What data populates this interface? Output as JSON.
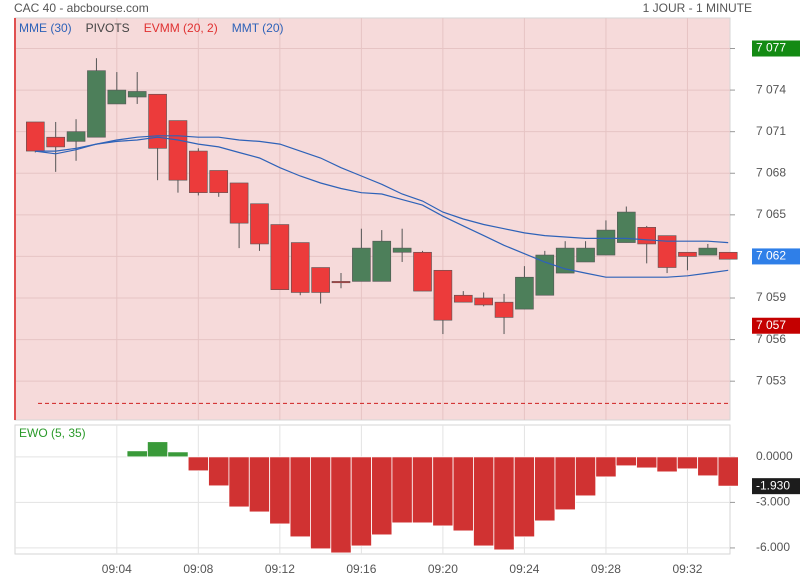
{
  "header": {
    "title": "CAC 40 - abcbourse.com",
    "timeframe": "1 JOUR - 1 MINUTE"
  },
  "chart_data": [
    {
      "type": "candlestick",
      "categories": [
        null,
        null,
        null,
        null,
        "09:04",
        null,
        null,
        null,
        "09:08",
        null,
        null,
        null,
        "09:12",
        null,
        null,
        null,
        "09:16",
        null,
        null,
        null,
        "09:20",
        null,
        null,
        null,
        "09:24",
        null,
        null,
        null,
        "09:28",
        null,
        null,
        null,
        "09:32",
        null,
        null
      ],
      "open": [
        7071.7,
        7070.6,
        7070.3,
        7070.6,
        7073.0,
        7073.5,
        7073.7,
        7071.8,
        7069.6,
        7068.2,
        7067.3,
        7065.8,
        7064.3,
        7063.0,
        7061.2,
        7060.2,
        7060.2,
        7060.2,
        7062.3,
        7062.3,
        7061.0,
        7059.2,
        7059.0,
        7058.7,
        7058.2,
        7059.2,
        7060.8,
        7061.6,
        7062.1,
        7063.0,
        7064.1,
        7063.5,
        7062.3,
        7062.1,
        7062.3
      ],
      "high": [
        7071.7,
        7071.7,
        7071.9,
        7076.3,
        7075.3,
        7075.3,
        7073.7,
        7071.8,
        7069.8,
        7068.2,
        7067.3,
        7065.8,
        7064.3,
        7063.0,
        7061.2,
        7060.8,
        7064.0,
        7063.9,
        7064.0,
        7062.4,
        7061.0,
        7059.5,
        7059.4,
        7059.3,
        7061.3,
        7062.4,
        7063.1,
        7063.1,
        7064.6,
        7065.6,
        7064.2,
        7063.5,
        7062.3,
        7062.9,
        7062.3
      ],
      "low": [
        7069.5,
        7068.1,
        7068.9,
        7070.6,
        7073.0,
        7073.0,
        7067.5,
        7066.6,
        7066.4,
        7066.3,
        7062.6,
        7062.4,
        7059.6,
        7059.2,
        7058.6,
        7059.7,
        7060.2,
        7060.2,
        7061.6,
        7059.5,
        7056.4,
        7058.7,
        7058.4,
        7056.4,
        7058.2,
        7059.2,
        7060.8,
        7061.6,
        7062.1,
        7063.0,
        7061.5,
        7060.8,
        7061.0,
        7062.1,
        7061.8
      ],
      "close": [
        7069.6,
        7069.9,
        7071.0,
        7075.4,
        7074.0,
        7073.9,
        7069.8,
        7067.5,
        7066.6,
        7066.6,
        7064.4,
        7062.9,
        7059.6,
        7059.4,
        7059.4,
        7060.1,
        7062.6,
        7063.1,
        7062.6,
        7059.5,
        7057.4,
        7058.7,
        7058.5,
        7057.6,
        7060.5,
        7062.1,
        7062.6,
        7062.6,
        7063.9,
        7065.2,
        7062.9,
        7061.2,
        7062.0,
        7062.6,
        7061.8
      ],
      "up_color": "#4d7f5a",
      "down_color": "#ec3b3b",
      "series": [
        {
          "name": "MME (30)",
          "color": "#2e62b8",
          "values": [
            7069.6,
            7069.6,
            7069.8,
            7070.1,
            7070.4,
            7070.6,
            7070.7,
            7070.7,
            7070.6,
            7070.6,
            7070.4,
            7070.3,
            7070.1,
            7069.6,
            7069.1,
            7068.4,
            7067.8,
            7067.2,
            7066.5,
            7066.0,
            7065.2,
            7064.7,
            7064.3,
            7064.0,
            7063.7,
            7063.5,
            7063.4,
            7063.3,
            7063.3,
            7063.3,
            7063.2,
            7063.1,
            7063.1,
            7063.1,
            7063.0
          ]
        },
        {
          "name": "MMT (20)",
          "color": "#2e62b8",
          "values": [
            7069.6,
            7069.4,
            7069.7,
            7070.1,
            7070.3,
            7070.4,
            7070.6,
            7070.4,
            7070.1,
            7069.9,
            7069.5,
            7069.1,
            7068.4,
            7067.8,
            7067.3,
            7066.9,
            7066.6,
            7066.5,
            7066.1,
            7065.7,
            7064.9,
            7064.2,
            7063.5,
            7062.8,
            7062.2,
            7061.6,
            7061.1,
            7060.8,
            7060.5,
            7060.5,
            7060.5,
            7060.5,
            7060.6,
            7060.8,
            7061.0
          ]
        }
      ],
      "indicators": [
        {
          "name": "PIVOTS",
          "color": "#444444"
        },
        {
          "name": "EVMM (20, 2)",
          "color": "#e03030"
        }
      ],
      "pivot": 7051.4,
      "pivot_color": "#d02020",
      "ylim": [
        7050.2,
        7079.2
      ],
      "yticks": [
        {
          "value": 7077,
          "label": "7 077"
        },
        {
          "value": 7074,
          "label": "7 074"
        },
        {
          "value": 7071,
          "label": "7 071"
        },
        {
          "value": 7068,
          "label": "7 068"
        },
        {
          "value": 7065,
          "label": "7 065"
        },
        {
          "value": 7062,
          "label": "7 062"
        },
        {
          "value": 7059,
          "label": "7 059"
        },
        {
          "value": 7056,
          "label": "7 056"
        },
        {
          "value": 7053,
          "label": "7 053"
        }
      ],
      "badges": [
        {
          "value": 7077,
          "label": "7 077",
          "color": "#138a13"
        },
        {
          "value": 7062,
          "label": "7 062",
          "color": "#2f7fe8"
        },
        {
          "value": 7057,
          "label": "7 057",
          "color": "#c40000"
        }
      ],
      "grid": true,
      "background": "#f6dada"
    },
    {
      "type": "bar",
      "title": "EWO (5, 35)",
      "title_color": "#2a9a2a",
      "values": [
        null,
        null,
        null,
        null,
        null,
        0.4,
        1.0,
        0.33,
        -0.92,
        -1.91,
        -3.3,
        -3.63,
        -4.42,
        -5.27,
        -6.06,
        -6.33,
        -5.87,
        -5.14,
        -4.35,
        -4.35,
        -4.55,
        -4.88,
        -5.87,
        -6.13,
        -5.27,
        -4.22,
        -3.49,
        -2.57,
        -1.32,
        -0.59,
        -0.73,
        -0.99,
        -0.79,
        -1.25,
        -1.93
      ],
      "pos_color": "#3a9a3a",
      "neg_color": "#d03232",
      "ylim": [
        -6.4,
        2.1
      ],
      "yticks": [
        {
          "value": 0,
          "label": "0.0000"
        },
        {
          "value": -3,
          "label": "-3.000"
        },
        {
          "value": -6,
          "label": "-6.000"
        }
      ],
      "badges": [
        {
          "value": -1.93,
          "label": "-1.930",
          "color": "#1c1c1c"
        }
      ],
      "grid": true
    }
  ]
}
